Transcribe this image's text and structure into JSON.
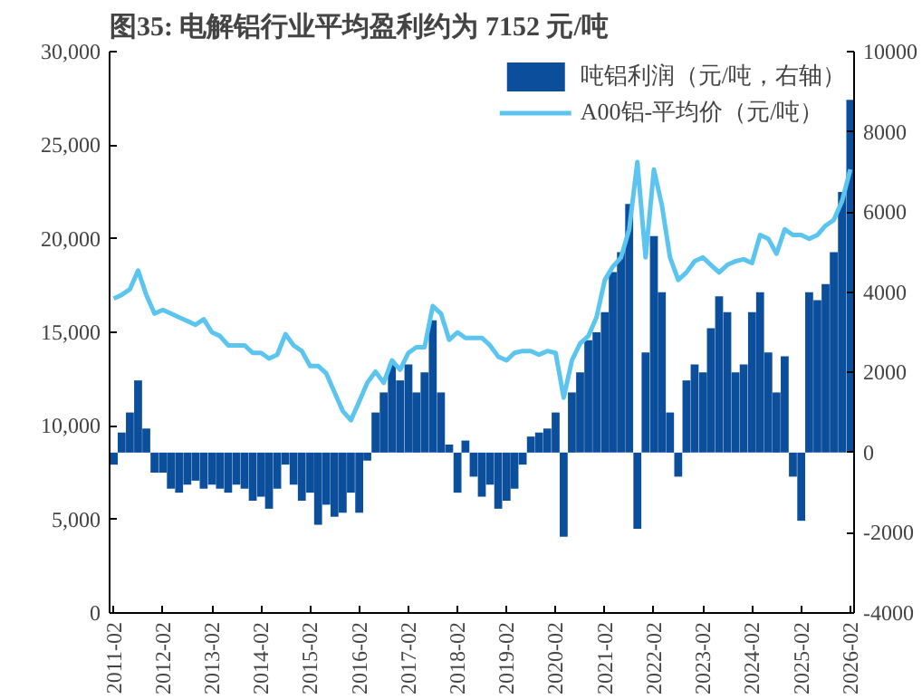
{
  "chart_data": {
    "type": "line",
    "title": "图35:  电解铝行业平均盈利约为 7152 元/吨",
    "x": [
      "2011-02",
      "2011-04",
      "2011-06",
      "2011-08",
      "2011-10",
      "2011-12",
      "2012-02",
      "2012-04",
      "2012-06",
      "2012-08",
      "2012-10",
      "2012-12",
      "2013-02",
      "2013-04",
      "2013-06",
      "2013-08",
      "2013-10",
      "2013-12",
      "2014-02",
      "2014-04",
      "2014-06",
      "2014-08",
      "2014-10",
      "2014-12",
      "2015-02",
      "2015-04",
      "2015-06",
      "2015-08",
      "2015-10",
      "2015-12",
      "2016-02",
      "2016-04",
      "2016-06",
      "2016-08",
      "2016-10",
      "2016-12",
      "2017-02",
      "2017-04",
      "2017-06",
      "2017-08",
      "2017-10",
      "2017-12",
      "2018-02",
      "2018-04",
      "2018-06",
      "2018-08",
      "2018-10",
      "2018-12",
      "2019-02",
      "2019-04",
      "2019-06",
      "2019-08",
      "2019-10",
      "2019-12",
      "2020-02",
      "2020-04",
      "2020-06",
      "2020-08",
      "2020-10",
      "2020-12",
      "2021-02",
      "2021-04",
      "2021-06",
      "2021-08",
      "2021-10",
      "2021-12",
      "2022-02",
      "2022-04",
      "2022-06",
      "2022-08",
      "2022-10",
      "2022-12",
      "2023-02",
      "2023-04",
      "2023-06",
      "2023-08",
      "2023-10",
      "2023-12",
      "2024-02",
      "2024-04",
      "2024-06",
      "2024-08",
      "2024-10",
      "2024-12",
      "2025-02",
      "2025-04",
      "2025-06",
      "2025-08",
      "2025-10",
      "2025-12",
      "2026-02"
    ],
    "series": [
      {
        "name": "吨铝利润（元/吨，右轴）",
        "type": "bar",
        "axis": "y2",
        "color": "#0b4f9c",
        "values": [
          -300,
          500,
          1000,
          1800,
          600,
          -500,
          -500,
          -900,
          -1000,
          -800,
          -700,
          -900,
          -800,
          -900,
          -1000,
          -800,
          -900,
          -1200,
          -1100,
          -1400,
          -900,
          -300,
          -800,
          -1200,
          -1000,
          -1800,
          -1300,
          -1600,
          -1500,
          -1000,
          -1500,
          -200,
          1000,
          1500,
          2200,
          1800,
          2200,
          1500,
          2000,
          3300,
          1500,
          200,
          -1000,
          300,
          -600,
          -1100,
          -800,
          -1400,
          -1200,
          -900,
          -300,
          400,
          500,
          600,
          1000,
          -2100,
          1500,
          2000,
          2800,
          3000,
          3500,
          4500,
          5000,
          6200,
          -1900,
          2500,
          5400,
          4000,
          1000,
          -600,
          1800,
          2200,
          2000,
          3100,
          3900,
          3500,
          2000,
          2200,
          3500,
          4000,
          2500,
          1500,
          2400,
          -600,
          -1700,
          4000,
          3800,
          4200,
          5000,
          6500,
          8800
        ]
      },
      {
        "name": "A00铝-平均价（元/吨）",
        "color": "#5bc5f0",
        "values": [
          16800,
          17000,
          17300,
          18300,
          17000,
          16000,
          16200,
          16000,
          15800,
          15600,
          15400,
          15700,
          15000,
          14800,
          14300,
          14300,
          14300,
          13900,
          13900,
          13600,
          13800,
          14900,
          14300,
          14000,
          13200,
          13200,
          12800,
          11800,
          10800,
          10300,
          11300,
          12300,
          12900,
          12300,
          13500,
          13000,
          13900,
          14200,
          14200,
          16400,
          16000,
          14600,
          15000,
          14700,
          14700,
          14700,
          14300,
          13700,
          13500,
          13900,
          14000,
          14000,
          13800,
          14000,
          13900,
          11500,
          13500,
          14400,
          14800,
          15800,
          17800,
          18500,
          19000,
          20500,
          24100,
          19000,
          23700,
          21800,
          19000,
          17800,
          18200,
          18800,
          19000,
          18600,
          18200,
          18600,
          18800,
          18900,
          18700,
          20200,
          20000,
          19200,
          20500,
          20200,
          20200,
          20000,
          20200,
          20700,
          21000,
          22000,
          23700
        ]
      }
    ],
    "ylim": [
      0,
      30000
    ],
    "yticks": [
      0,
      {
        "value": 5000,
        "label": "5,000"
      },
      {
        "value": 10000,
        "label": "10,000"
      },
      {
        "value": 15000,
        "label": "15,000"
      },
      {
        "value": 20000,
        "label": "20,000"
      },
      {
        "value": 25000,
        "label": "25,000"
      },
      {
        "value": 30000,
        "label": "30,000"
      }
    ],
    "y2lim": [
      -4000,
      10000
    ],
    "y2ticks": [
      -4000,
      -2000,
      0,
      2000,
      4000,
      6000,
      8000,
      10000
    ],
    "xlim": [
      "2011-01",
      "2026-03"
    ],
    "xticks": [
      "2011-02",
      "2012-02",
      "2013-02",
      "2014-02",
      "2015-02",
      "2016-02",
      "2017-02",
      "2018-02",
      "2019-02",
      "2020-02",
      "2021-02",
      "2022-02",
      "2023-02",
      "2024-02",
      "2025-02",
      "2026-02"
    ],
    "legend": "top right",
    "grid": false
  }
}
